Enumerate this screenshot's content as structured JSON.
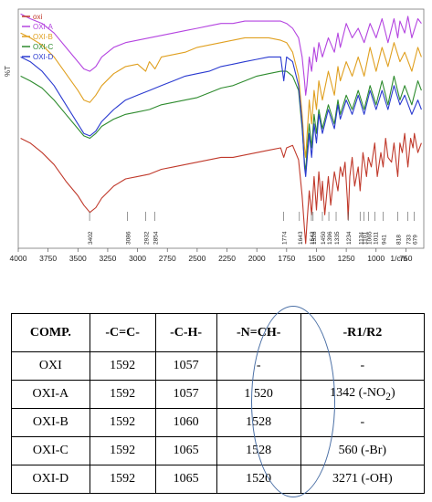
{
  "chart_data": {
    "type": "line",
    "ylabel": "%T",
    "xlabel": "1/cm",
    "xlim": [
      4000,
      600
    ],
    "x_ticks": [
      4000,
      3750,
      3500,
      3250,
      3000,
      2750,
      2500,
      2250,
      2000,
      1750,
      1500,
      1250,
      1000,
      750
    ],
    "legend_position": "top-left",
    "series": [
      {
        "name": "oxi",
        "color": "#c0392b",
        "x": [
          3980,
          3900,
          3800,
          3700,
          3600,
          3500,
          3450,
          3400,
          3350,
          3300,
          3200,
          3100,
          3000,
          2900,
          2800,
          2700,
          2600,
          2500,
          2400,
          2300,
          2200,
          2100,
          2000,
          1900,
          1800,
          1774,
          1750,
          1700,
          1650,
          1620,
          1600,
          1590,
          1580,
          1560,
          1540,
          1520,
          1500,
          1480,
          1460,
          1450,
          1430,
          1400,
          1380,
          1350,
          1320,
          1300,
          1280,
          1260,
          1240,
          1234,
          1220,
          1200,
          1180,
          1150,
          1134,
          1110,
          1080,
          1065,
          1040,
          1011,
          990,
          960,
          941,
          920,
          900,
          870,
          850,
          818,
          800,
          780,
          760,
          733,
          710,
          690,
          679,
          650,
          620
        ],
        "y": [
          46,
          44,
          40,
          35,
          28,
          22,
          18,
          15,
          17,
          21,
          26,
          29,
          30,
          31,
          33,
          34,
          35,
          36,
          37,
          38,
          38,
          39,
          40,
          41,
          42,
          38,
          42,
          43,
          37,
          22,
          8,
          2,
          10,
          24,
          14,
          30,
          16,
          32,
          20,
          28,
          14,
          30,
          18,
          32,
          24,
          34,
          30,
          36,
          20,
          12,
          30,
          38,
          26,
          34,
          24,
          40,
          30,
          38,
          34,
          44,
          30,
          40,
          34,
          46,
          38,
          36,
          44,
          30,
          44,
          40,
          48,
          34,
          46,
          42,
          48,
          40,
          44
        ]
      },
      {
        "name": "OXI-A",
        "color": "#b444e0",
        "x": [
          3980,
          3900,
          3800,
          3700,
          3600,
          3500,
          3450,
          3400,
          3350,
          3300,
          3200,
          3100,
          3000,
          2900,
          2800,
          2700,
          2600,
          2500,
          2400,
          2300,
          2200,
          2100,
          2000,
          1900,
          1800,
          1750,
          1700,
          1650,
          1620,
          1600,
          1590,
          1580,
          1560,
          1540,
          1520,
          1500,
          1480,
          1450,
          1400,
          1350,
          1320,
          1300,
          1250,
          1200,
          1150,
          1100,
          1050,
          1000,
          950,
          900,
          850,
          818,
          800,
          760,
          733,
          700,
          650,
          620
        ],
        "y": [
          98,
          96,
          94,
          90,
          84,
          78,
          75,
          74,
          76,
          80,
          84,
          86,
          87,
          88,
          89,
          90,
          91,
          92,
          93,
          94,
          94,
          95,
          95,
          95,
          95,
          94,
          92,
          88,
          80,
          70,
          64,
          68,
          80,
          74,
          84,
          78,
          86,
          80,
          88,
          82,
          90,
          84,
          94,
          88,
          92,
          86,
          94,
          88,
          96,
          86,
          96,
          88,
          95,
          90,
          97,
          88,
          96,
          94
        ]
      },
      {
        "name": "OXI-B",
        "color": "#e0a020",
        "x": [
          3980,
          3900,
          3800,
          3700,
          3600,
          3500,
          3450,
          3400,
          3350,
          3300,
          3200,
          3100,
          3000,
          2932,
          2900,
          2854,
          2800,
          2700,
          2600,
          2500,
          2400,
          2300,
          2200,
          2100,
          2000,
          1900,
          1800,
          1750,
          1700,
          1650,
          1620,
          1600,
          1590,
          1580,
          1560,
          1540,
          1520,
          1500,
          1480,
          1450,
          1400,
          1350,
          1320,
          1300,
          1250,
          1200,
          1150,
          1100,
          1050,
          1000,
          950,
          900,
          850,
          800,
          760,
          700,
          650,
          620
        ],
        "y": [
          90,
          88,
          85,
          80,
          73,
          66,
          62,
          61,
          64,
          68,
          73,
          76,
          77,
          74,
          78,
          75,
          80,
          81,
          82,
          84,
          85,
          86,
          87,
          88,
          88,
          88,
          87,
          86,
          82,
          72,
          56,
          42,
          38,
          46,
          62,
          52,
          66,
          58,
          70,
          62,
          74,
          64,
          76,
          70,
          78,
          72,
          80,
          72,
          84,
          74,
          84,
          76,
          86,
          78,
          82,
          74,
          84,
          80
        ]
      },
      {
        "name": "OXI-C",
        "color": "#2e8b2e",
        "x": [
          3980,
          3900,
          3800,
          3700,
          3600,
          3500,
          3450,
          3400,
          3350,
          3300,
          3200,
          3100,
          3000,
          2900,
          2800,
          2700,
          2600,
          2500,
          2400,
          2300,
          2200,
          2100,
          2000,
          1900,
          1800,
          1750,
          1700,
          1650,
          1620,
          1600,
          1590,
          1580,
          1560,
          1540,
          1520,
          1500,
          1480,
          1450,
          1400,
          1350,
          1320,
          1300,
          1250,
          1200,
          1150,
          1100,
          1050,
          1000,
          950,
          900,
          850,
          800,
          760,
          700,
          650,
          620
        ],
        "y": [
          72,
          70,
          67,
          62,
          56,
          50,
          47,
          46,
          48,
          51,
          54,
          56,
          57,
          58,
          60,
          61,
          62,
          63,
          65,
          67,
          68,
          70,
          72,
          73,
          74,
          74,
          72,
          66,
          50,
          36,
          32,
          40,
          52,
          42,
          56,
          48,
          58,
          50,
          60,
          52,
          62,
          56,
          64,
          58,
          66,
          58,
          68,
          60,
          70,
          60,
          72,
          62,
          68,
          60,
          70,
          66
        ]
      },
      {
        "name": "OXI-D",
        "color": "#2a3ad0",
        "x": [
          3980,
          3900,
          3800,
          3700,
          3600,
          3500,
          3450,
          3400,
          3350,
          3300,
          3200,
          3100,
          3000,
          2900,
          2800,
          2700,
          2600,
          2500,
          2400,
          2300,
          2200,
          2100,
          2000,
          1900,
          1800,
          1774,
          1750,
          1700,
          1650,
          1620,
          1600,
          1590,
          1580,
          1560,
          1540,
          1520,
          1500,
          1480,
          1450,
          1400,
          1350,
          1320,
          1300,
          1250,
          1200,
          1150,
          1100,
          1050,
          1000,
          950,
          900,
          850,
          800,
          760,
          700,
          650,
          620
        ],
        "y": [
          80,
          78,
          74,
          68,
          60,
          52,
          48,
          47,
          49,
          53,
          58,
          62,
          64,
          66,
          68,
          70,
          72,
          73,
          74,
          76,
          77,
          78,
          79,
          80,
          80,
          70,
          80,
          78,
          68,
          52,
          34,
          30,
          36,
          48,
          38,
          52,
          44,
          56,
          48,
          58,
          50,
          60,
          54,
          62,
          56,
          64,
          56,
          66,
          58,
          66,
          58,
          68,
          60,
          64,
          56,
          62,
          58
        ]
      }
    ],
    "peak_labels": [
      "3402",
      "3086",
      "2932",
      "2854",
      "1774",
      "1643",
      "1542",
      "1528",
      "1450",
      "1396",
      "1335",
      "1234",
      "1134",
      "1101",
      "1065",
      "1011",
      "941",
      "818",
      "733",
      "679"
    ],
    "peak_positions": [
      3402,
      3086,
      2932,
      2854,
      1774,
      1643,
      1542,
      1528,
      1450,
      1396,
      1335,
      1234,
      1134,
      1101,
      1065,
      1011,
      941,
      818,
      733,
      679
    ]
  },
  "table": {
    "headers": [
      "COMP.",
      "-C=C-",
      "-C-H-",
      "-N=CH-",
      "-R1/R2"
    ],
    "rows": [
      [
        "OXI",
        "1592",
        "1057",
        "-",
        "-"
      ],
      [
        "OXI-A",
        "1592",
        "1057",
        "1 520",
        "1342 (-NO2)"
      ],
      [
        "OXI-B",
        "1592",
        "1060",
        "1528",
        "-"
      ],
      [
        "OXI-C",
        "1592",
        "1065",
        "1528",
        "560 (-Br)"
      ],
      [
        "OXI-D",
        "1592",
        "1065",
        "1520",
        "3271 (-OH)"
      ]
    ]
  }
}
